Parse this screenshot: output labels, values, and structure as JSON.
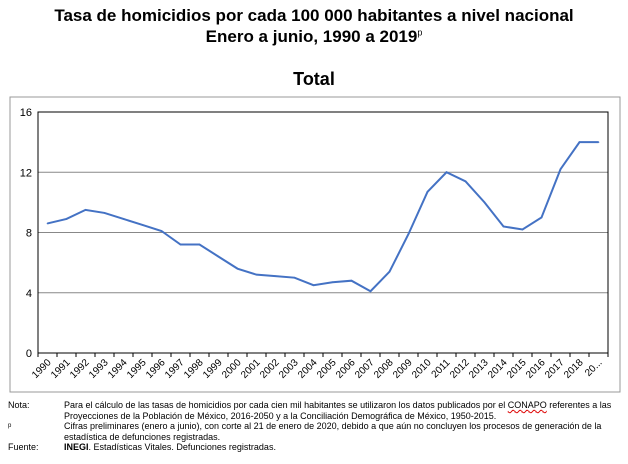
{
  "title_line1": "Tasa de homicidios por cada 100 000 habitantes a nivel nacional",
  "title_line2": "Enero a junio, 1990 a 2019",
  "title_sup": "p",
  "subtitle": "Total",
  "chart_data": {
    "type": "line",
    "title": "Total",
    "categories": [
      "1990",
      "1991",
      "1992",
      "1993",
      "1994",
      "1995",
      "1996",
      "1997",
      "1998",
      "1999",
      "2000",
      "2001",
      "2002",
      "2003",
      "2004",
      "2005",
      "2006",
      "2007",
      "2008",
      "2009",
      "2010",
      "2011",
      "2012",
      "2013",
      "2014",
      "2015",
      "2016",
      "2017",
      "2018",
      "20..."
    ],
    "values": [
      8.6,
      8.9,
      9.5,
      9.3,
      8.9,
      8.5,
      8.1,
      7.2,
      7.2,
      6.4,
      5.6,
      5.2,
      5.1,
      5.0,
      4.5,
      4.7,
      4.8,
      4.1,
      5.4,
      7.9,
      10.7,
      12.0,
      11.4,
      10.0,
      8.4,
      8.2,
      9.0,
      12.2,
      14.0,
      14.0
    ],
    "ylim": [
      0,
      16
    ],
    "yticks": [
      "0",
      "4",
      "8",
      "12",
      "16"
    ],
    "grid": true,
    "line_color": "#4472c4"
  },
  "notes": {
    "nota_label": "Nota:",
    "nota_text_1": "Para el cálculo de las tasas de homicidios por cada cien mil habitantes se utilizaron los datos publicados por el ",
    "nota_conapo": "CONAPO",
    "nota_text_2": " referentes a las Proyecciones de la Población de México, 2016-2050 y a la Conciliación Demográfica de México, 1950-2015.",
    "p_label": "p",
    "p_text": "Cifras preliminares (enero a junio), con corte al 21 de enero de 2020, debido a que aún no concluyen los procesos de generación de la estadística de defunciones registradas.",
    "fuente_label": "Fuente:",
    "fuente_bold": "INEGI",
    "fuente_text": ". Estadísticas Vitales. Defunciones registradas."
  }
}
